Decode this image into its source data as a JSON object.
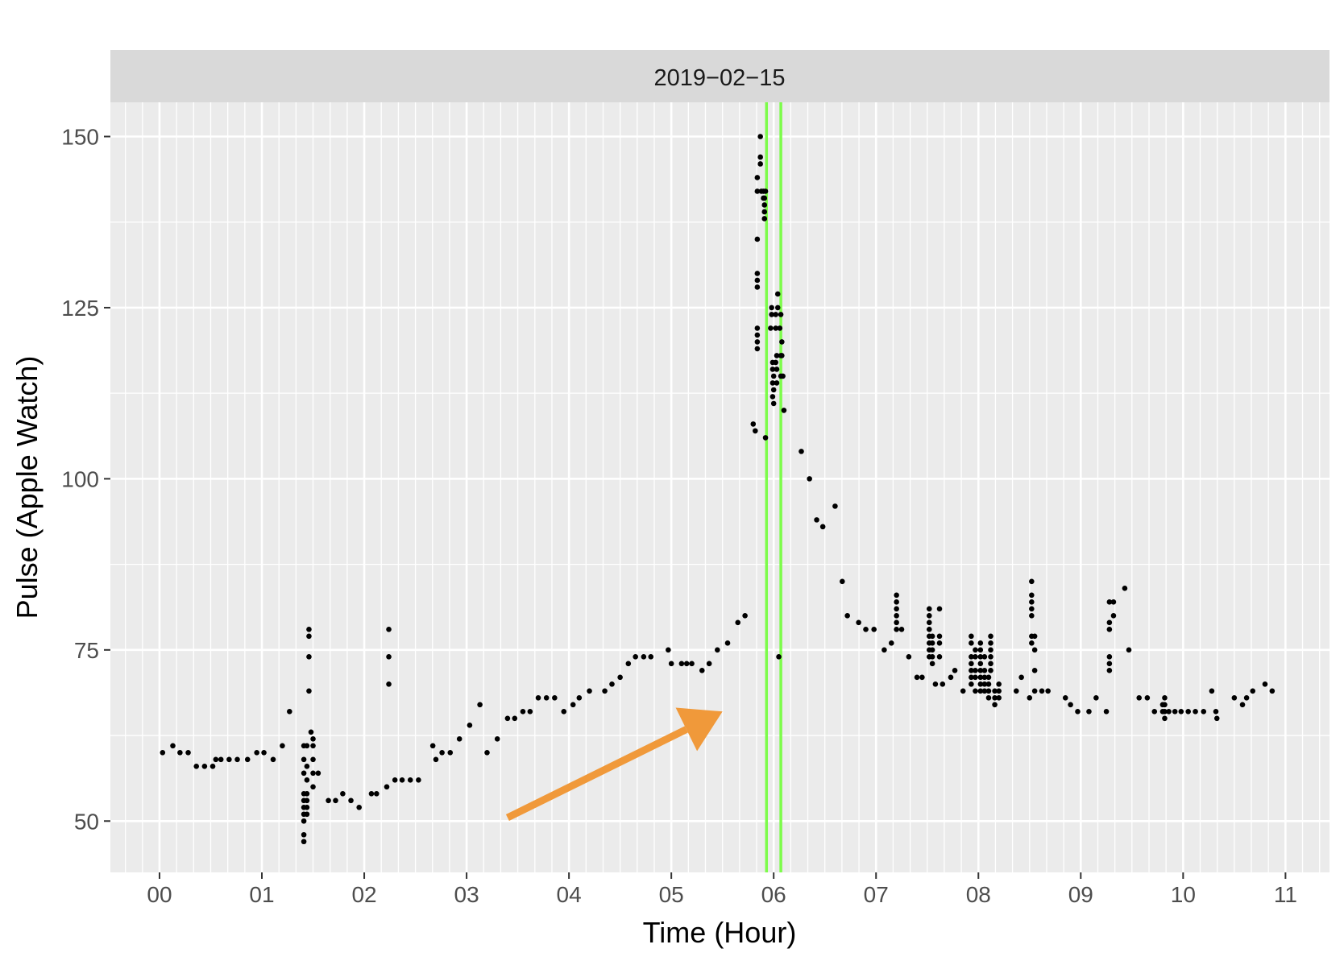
{
  "chart_data": {
    "type": "scatter",
    "facet_label": "2019−02−15",
    "xlabel": "Time (Hour)",
    "ylabel": "Pulse (Apple Watch)",
    "xlim": [
      -0.48,
      11.43
    ],
    "ylim": [
      42.5,
      155
    ],
    "x_ticks": [
      0,
      1,
      2,
      3,
      4,
      5,
      6,
      7,
      8,
      9,
      10,
      11
    ],
    "x_tick_labels": [
      "00",
      "01",
      "02",
      "03",
      "04",
      "05",
      "06",
      "07",
      "08",
      "09",
      "10",
      "11"
    ],
    "y_ticks": [
      50,
      75,
      100,
      125,
      150
    ],
    "y_tick_labels": [
      "50",
      "75",
      "100",
      "125",
      "150"
    ],
    "grid": true,
    "vlines": [
      {
        "x": 5.93,
        "color": "#7CFC4A"
      },
      {
        "x": 6.07,
        "color": "#7CFC4A"
      }
    ],
    "arrow": {
      "from": [
        3.4,
        50.5
      ],
      "to": [
        5.5,
        66
      ],
      "color": "#F0993A"
    },
    "colors": {
      "points": "#000000",
      "panel": "#EBEBEB",
      "strip": "#D9D9D9",
      "grid": "#FFFFFF"
    },
    "points": [
      [
        0.03,
        60
      ],
      [
        0.13,
        61
      ],
      [
        0.2,
        60
      ],
      [
        0.28,
        60
      ],
      [
        0.36,
        58
      ],
      [
        0.44,
        58
      ],
      [
        0.52,
        58
      ],
      [
        0.55,
        59
      ],
      [
        0.6,
        59
      ],
      [
        0.68,
        59
      ],
      [
        0.76,
        59
      ],
      [
        0.86,
        59
      ],
      [
        0.95,
        60
      ],
      [
        1.02,
        60
      ],
      [
        1.11,
        59
      ],
      [
        1.2,
        61
      ],
      [
        1.27,
        66
      ],
      [
        1.41,
        51
      ],
      [
        1.41,
        52
      ],
      [
        1.41,
        53
      ],
      [
        1.41,
        54
      ],
      [
        1.41,
        57
      ],
      [
        1.41,
        59
      ],
      [
        1.41,
        61
      ],
      [
        1.41,
        48
      ],
      [
        1.41,
        47
      ],
      [
        1.41,
        50
      ],
      [
        1.44,
        51
      ],
      [
        1.44,
        52
      ],
      [
        1.44,
        53
      ],
      [
        1.44,
        54
      ],
      [
        1.44,
        56
      ],
      [
        1.44,
        58
      ],
      [
        1.44,
        61
      ],
      [
        1.46,
        69
      ],
      [
        1.46,
        74
      ],
      [
        1.46,
        77
      ],
      [
        1.46,
        78
      ],
      [
        1.48,
        63
      ],
      [
        1.5,
        55
      ],
      [
        1.5,
        57
      ],
      [
        1.5,
        59
      ],
      [
        1.5,
        61
      ],
      [
        1.5,
        62
      ],
      [
        1.55,
        57
      ],
      [
        1.65,
        53
      ],
      [
        1.72,
        53
      ],
      [
        1.79,
        54
      ],
      [
        1.87,
        53
      ],
      [
        1.95,
        52
      ],
      [
        2.07,
        54
      ],
      [
        2.12,
        54
      ],
      [
        2.22,
        55
      ],
      [
        2.24,
        70
      ],
      [
        2.24,
        74
      ],
      [
        2.24,
        78
      ],
      [
        2.3,
        56
      ],
      [
        2.37,
        56
      ],
      [
        2.45,
        56
      ],
      [
        2.53,
        56
      ],
      [
        2.67,
        61
      ],
      [
        2.7,
        59
      ],
      [
        2.76,
        60
      ],
      [
        2.84,
        60
      ],
      [
        2.93,
        62
      ],
      [
        3.03,
        64
      ],
      [
        3.13,
        67
      ],
      [
        3.2,
        60
      ],
      [
        3.3,
        62
      ],
      [
        3.4,
        65
      ],
      [
        3.47,
        65
      ],
      [
        3.55,
        66
      ],
      [
        3.62,
        66
      ],
      [
        3.7,
        68
      ],
      [
        3.78,
        68
      ],
      [
        3.86,
        68
      ],
      [
        3.95,
        66
      ],
      [
        4.04,
        67
      ],
      [
        4.1,
        68
      ],
      [
        4.2,
        69
      ],
      [
        4.35,
        69
      ],
      [
        4.42,
        70
      ],
      [
        4.5,
        71
      ],
      [
        4.58,
        73
      ],
      [
        4.65,
        74
      ],
      [
        4.73,
        74
      ],
      [
        4.8,
        74
      ],
      [
        4.97,
        75
      ],
      [
        5.0,
        73
      ],
      [
        5.1,
        73
      ],
      [
        5.15,
        73
      ],
      [
        5.2,
        73
      ],
      [
        5.3,
        72
      ],
      [
        5.37,
        73
      ],
      [
        5.45,
        75
      ],
      [
        5.55,
        76
      ],
      [
        5.65,
        79
      ],
      [
        5.72,
        80
      ],
      [
        5.8,
        108
      ],
      [
        5.82,
        107
      ],
      [
        5.92,
        106
      ],
      [
        5.84,
        119
      ],
      [
        5.84,
        120
      ],
      [
        5.84,
        121
      ],
      [
        5.84,
        122
      ],
      [
        5.84,
        128
      ],
      [
        5.84,
        129
      ],
      [
        5.84,
        130
      ],
      [
        5.84,
        135
      ],
      [
        5.84,
        142
      ],
      [
        5.84,
        144
      ],
      [
        5.87,
        146
      ],
      [
        5.87,
        147
      ],
      [
        5.87,
        150
      ],
      [
        5.88,
        142
      ],
      [
        5.9,
        141
      ],
      [
        5.9,
        142
      ],
      [
        5.91,
        138
      ],
      [
        5.91,
        139
      ],
      [
        5.91,
        140
      ],
      [
        5.91,
        141
      ],
      [
        5.92,
        142
      ],
      [
        5.97,
        122
      ],
      [
        5.98,
        124
      ],
      [
        5.98,
        125
      ],
      [
        5.99,
        112
      ],
      [
        5.99,
        114
      ],
      [
        5.99,
        116
      ],
      [
        5.99,
        117
      ],
      [
        6.0,
        111
      ],
      [
        6.0,
        113
      ],
      [
        6.0,
        115
      ],
      [
        6.02,
        117
      ],
      [
        6.02,
        122
      ],
      [
        6.02,
        124
      ],
      [
        6.03,
        114
      ],
      [
        6.03,
        116
      ],
      [
        6.03,
        118
      ],
      [
        6.04,
        125
      ],
      [
        6.04,
        127
      ],
      [
        6.05,
        74
      ],
      [
        6.06,
        122
      ],
      [
        6.07,
        115
      ],
      [
        6.07,
        118
      ],
      [
        6.07,
        124
      ],
      [
        6.08,
        118
      ],
      [
        6.08,
        120
      ],
      [
        6.09,
        115
      ],
      [
        6.1,
        110
      ],
      [
        6.27,
        104
      ],
      [
        6.35,
        100
      ],
      [
        6.42,
        94
      ],
      [
        6.48,
        93
      ],
      [
        6.6,
        96
      ],
      [
        6.67,
        85
      ],
      [
        6.72,
        80
      ],
      [
        6.83,
        79
      ],
      [
        6.9,
        78
      ],
      [
        6.98,
        78
      ],
      [
        7.08,
        75
      ],
      [
        7.15,
        76
      ],
      [
        7.2,
        78
      ],
      [
        7.2,
        79
      ],
      [
        7.2,
        80
      ],
      [
        7.2,
        81
      ],
      [
        7.2,
        82
      ],
      [
        7.2,
        83
      ],
      [
        7.25,
        78
      ],
      [
        7.32,
        74
      ],
      [
        7.4,
        71
      ],
      [
        7.45,
        71
      ],
      [
        7.52,
        74
      ],
      [
        7.52,
        75
      ],
      [
        7.52,
        76
      ],
      [
        7.52,
        77
      ],
      [
        7.52,
        78
      ],
      [
        7.52,
        79
      ],
      [
        7.52,
        80
      ],
      [
        7.52,
        81
      ],
      [
        7.55,
        73
      ],
      [
        7.55,
        74
      ],
      [
        7.55,
        75
      ],
      [
        7.55,
        76
      ],
      [
        7.55,
        77
      ],
      [
        7.58,
        70
      ],
      [
        7.62,
        74
      ],
      [
        7.62,
        76
      ],
      [
        7.62,
        77
      ],
      [
        7.62,
        81
      ],
      [
        7.65,
        70
      ],
      [
        7.73,
        71
      ],
      [
        7.77,
        72
      ],
      [
        7.85,
        69
      ],
      [
        7.93,
        70
      ],
      [
        7.93,
        71
      ],
      [
        7.93,
        72
      ],
      [
        7.93,
        73
      ],
      [
        7.93,
        74
      ],
      [
        7.93,
        76
      ],
      [
        7.93,
        77
      ],
      [
        7.97,
        69
      ],
      [
        7.97,
        71
      ],
      [
        7.97,
        72
      ],
      [
        7.97,
        74
      ],
      [
        7.97,
        75
      ],
      [
        8.02,
        69
      ],
      [
        8.02,
        70
      ],
      [
        8.02,
        71
      ],
      [
        8.02,
        72
      ],
      [
        8.02,
        73
      ],
      [
        8.02,
        74
      ],
      [
        8.02,
        75
      ],
      [
        8.02,
        76
      ],
      [
        8.06,
        69
      ],
      [
        8.06,
        70
      ],
      [
        8.06,
        71
      ],
      [
        8.06,
        72
      ],
      [
        8.06,
        74
      ],
      [
        8.1,
        68
      ],
      [
        8.1,
        69
      ],
      [
        8.1,
        70
      ],
      [
        8.1,
        71
      ],
      [
        8.12,
        72
      ],
      [
        8.12,
        73
      ],
      [
        8.12,
        74
      ],
      [
        8.12,
        75
      ],
      [
        8.12,
        76
      ],
      [
        8.12,
        77
      ],
      [
        8.16,
        67
      ],
      [
        8.16,
        68
      ],
      [
        8.16,
        69
      ],
      [
        8.2,
        68
      ],
      [
        8.2,
        69
      ],
      [
        8.2,
        70
      ],
      [
        8.37,
        69
      ],
      [
        8.42,
        71
      ],
      [
        8.5,
        68
      ],
      [
        8.52,
        76
      ],
      [
        8.52,
        77
      ],
      [
        8.52,
        80
      ],
      [
        8.52,
        81
      ],
      [
        8.52,
        82
      ],
      [
        8.52,
        83
      ],
      [
        8.52,
        85
      ],
      [
        8.55,
        69
      ],
      [
        8.55,
        72
      ],
      [
        8.55,
        75
      ],
      [
        8.55,
        77
      ],
      [
        8.62,
        69
      ],
      [
        8.68,
        69
      ],
      [
        8.85,
        68
      ],
      [
        8.9,
        67
      ],
      [
        8.97,
        66
      ],
      [
        9.08,
        66
      ],
      [
        9.15,
        68
      ],
      [
        9.25,
        66
      ],
      [
        9.28,
        72
      ],
      [
        9.28,
        73
      ],
      [
        9.28,
        74
      ],
      [
        9.28,
        78
      ],
      [
        9.28,
        79
      ],
      [
        9.28,
        82
      ],
      [
        9.32,
        80
      ],
      [
        9.32,
        82
      ],
      [
        9.43,
        84
      ],
      [
        9.47,
        75
      ],
      [
        9.57,
        68
      ],
      [
        9.65,
        68
      ],
      [
        9.72,
        66
      ],
      [
        9.8,
        66
      ],
      [
        9.8,
        67
      ],
      [
        9.82,
        65
      ],
      [
        9.82,
        66
      ],
      [
        9.82,
        67
      ],
      [
        9.82,
        68
      ],
      [
        9.86,
        66
      ],
      [
        9.92,
        66
      ],
      [
        9.98,
        66
      ],
      [
        10.05,
        66
      ],
      [
        10.12,
        66
      ],
      [
        10.2,
        66
      ],
      [
        10.28,
        69
      ],
      [
        10.32,
        66
      ],
      [
        10.33,
        65
      ],
      [
        10.5,
        68
      ],
      [
        10.58,
        67
      ],
      [
        10.62,
        68
      ],
      [
        10.68,
        69
      ],
      [
        10.8,
        70
      ],
      [
        10.87,
        69
      ]
    ]
  }
}
